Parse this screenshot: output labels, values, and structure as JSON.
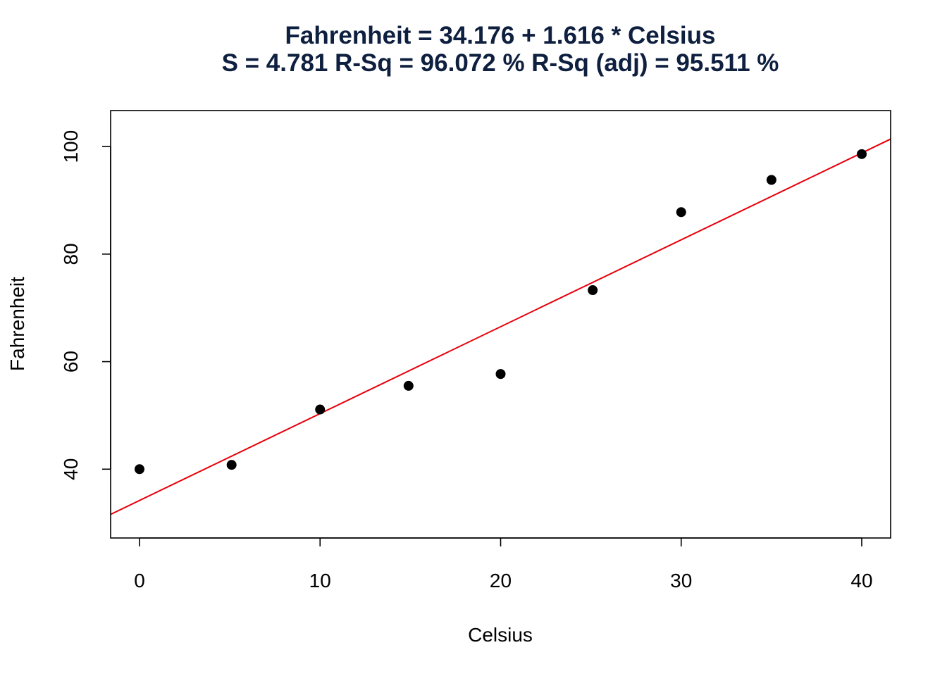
{
  "chart_data": {
    "type": "scatter",
    "title": "Fahrenheit = 34.176 + 1.616 * Celsius",
    "subtitle": "S = 4.781   R-Sq = 96.072 %  R-Sq (adj) = 95.511 %",
    "xlabel": "Celsius",
    "ylabel": "Fahrenheit",
    "xlim": [
      -1.6,
      41.6
    ],
    "ylim": [
      27.2,
      106.7
    ],
    "xticks": [
      0,
      10,
      20,
      30,
      40
    ],
    "xtick_labels": [
      "0",
      "10",
      "20",
      "30",
      "40"
    ],
    "yticks": [
      40,
      60,
      80,
      100
    ],
    "ytick_labels": [
      "40",
      "60",
      "80",
      "100"
    ],
    "grid": false,
    "legend": "none",
    "series": [
      {
        "x": [
          0,
          5.1,
          10,
          14.9,
          20,
          25.1,
          30,
          35,
          40
        ],
        "y": [
          40,
          40.8,
          51.1,
          55.5,
          57.7,
          73.3,
          87.8,
          93.8,
          98.6
        ],
        "color": "#000000"
      }
    ],
    "fit_line": {
      "intercept": 34.176,
      "slope": 1.616,
      "color": "#e8000b"
    },
    "title_color": "#0e1f3f"
  }
}
